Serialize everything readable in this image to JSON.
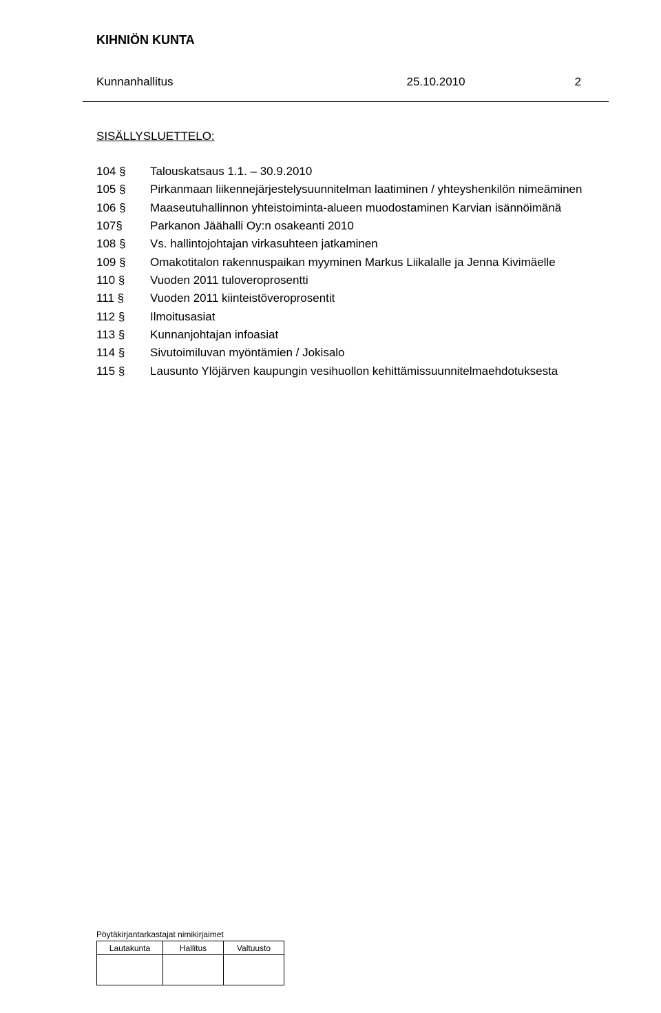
{
  "org_name": "KIHNIÖN KUNTA",
  "header": {
    "body": "Kunnanhallitus",
    "date": "25.10.2010",
    "page_no": "2"
  },
  "toc_title": "SISÄLLYSLUETTELO:",
  "toc": [
    {
      "num": "104 §",
      "text": "Talouskatsaus 1.1. – 30.9.2010"
    },
    {
      "num": "105 §",
      "text": "Pirkanmaan liikennejärjestelysuunnitelman laatiminen / yhteyshenkilön nimeäminen"
    },
    {
      "num": "106 §",
      "text": "Maaseutuhallinnon yhteistoiminta-alueen muodostaminen Karvian isännöimänä"
    },
    {
      "num": "107§",
      "text": "Parkanon Jäähalli Oy:n osakeanti 2010"
    },
    {
      "num": "108 §",
      "text": "Vs. hallintojohtajan virkasuhteen jatkaminen"
    },
    {
      "num": "109 §",
      "text": "Omakotitalon rakennuspaikan myyminen Markus Liikalalle ja Jenna Kivimäelle"
    },
    {
      "num": "110 §",
      "text": "Vuoden 2011 tuloveroprosentti"
    },
    {
      "num": "111 §",
      "text": "Vuoden 2011 kiinteistöveroprosentit"
    },
    {
      "num": "112 §",
      "text": "Ilmoitusasiat"
    },
    {
      "num": "113 §",
      "text": "Kunnanjohtajan infoasiat"
    },
    {
      "num": "114 §",
      "text": "Sivutoimiluvan myöntämien / Jokisalo"
    },
    {
      "num": "115 §",
      "text": "Lausunto Ylöjärven kaupungin vesihuollon kehittämissuunnitelmaehdotuksesta"
    }
  ],
  "footer": {
    "label": "Pöytäkirjantarkastajat nimikirjaimet",
    "cols": [
      "Lautakunta",
      "Hallitus",
      "Valtuusto"
    ]
  }
}
